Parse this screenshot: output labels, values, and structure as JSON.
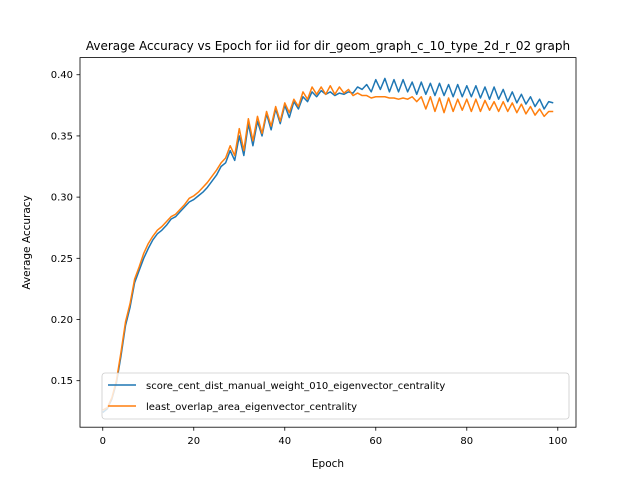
{
  "chart_data": {
    "type": "line",
    "title": "Average Accuracy vs Epoch for iid for dir_geom_graph_c_10_type_2d_r_02 graph",
    "xlabel": "Epoch",
    "ylabel": "Average Accuracy",
    "xlim": [
      -5,
      104
    ],
    "ylim": [
      0.112,
      0.414
    ],
    "xticks": [
      0,
      20,
      40,
      60,
      80,
      100
    ],
    "yticks": [
      0.15,
      0.2,
      0.25,
      0.3,
      0.35,
      0.4
    ],
    "ytick_labels": [
      "0.15",
      "0.20",
      "0.25",
      "0.30",
      "0.35",
      "0.40"
    ],
    "grid": false,
    "legend_position": "lower-left",
    "colors": {
      "series1": "#1f77b4",
      "series2": "#ff7f0e"
    },
    "x": [
      0,
      1,
      2,
      3,
      4,
      5,
      6,
      7,
      8,
      9,
      10,
      11,
      12,
      13,
      14,
      15,
      16,
      17,
      18,
      19,
      20,
      21,
      22,
      23,
      24,
      25,
      26,
      27,
      28,
      29,
      30,
      31,
      32,
      33,
      34,
      35,
      36,
      37,
      38,
      39,
      40,
      41,
      42,
      43,
      44,
      45,
      46,
      47,
      48,
      49,
      50,
      51,
      52,
      53,
      54,
      55,
      56,
      57,
      58,
      59,
      60,
      61,
      62,
      63,
      64,
      65,
      66,
      67,
      68,
      69,
      70,
      71,
      72,
      73,
      74,
      75,
      76,
      77,
      78,
      79,
      80,
      81,
      82,
      83,
      84,
      85,
      86,
      87,
      88,
      89,
      90,
      91,
      92,
      93,
      94,
      95,
      96,
      97,
      98,
      99
    ],
    "series": [
      {
        "name": "score_cent_dist_manual_weight_010_eigenvector_centrality",
        "values": [
          0.124,
          0.127,
          0.135,
          0.148,
          0.17,
          0.195,
          0.21,
          0.23,
          0.24,
          0.25,
          0.258,
          0.265,
          0.27,
          0.273,
          0.277,
          0.282,
          0.284,
          0.288,
          0.292,
          0.296,
          0.298,
          0.301,
          0.304,
          0.308,
          0.313,
          0.318,
          0.325,
          0.328,
          0.338,
          0.33,
          0.35,
          0.334,
          0.36,
          0.342,
          0.362,
          0.35,
          0.368,
          0.355,
          0.372,
          0.36,
          0.375,
          0.365,
          0.378,
          0.372,
          0.382,
          0.378,
          0.386,
          0.382,
          0.387,
          0.384,
          0.386,
          0.383,
          0.385,
          0.384,
          0.386,
          0.385,
          0.39,
          0.388,
          0.392,
          0.386,
          0.396,
          0.388,
          0.397,
          0.386,
          0.396,
          0.386,
          0.396,
          0.386,
          0.394,
          0.384,
          0.394,
          0.384,
          0.393,
          0.383,
          0.393,
          0.383,
          0.392,
          0.382,
          0.392,
          0.382,
          0.391,
          0.382,
          0.391,
          0.381,
          0.39,
          0.38,
          0.39,
          0.38,
          0.388,
          0.378,
          0.386,
          0.377,
          0.384,
          0.376,
          0.382,
          0.374,
          0.38,
          0.372,
          0.378,
          0.377
        ]
      },
      {
        "name": "least_overlap_area_eigenvector_centrality",
        "values": [
          0.126,
          0.128,
          0.136,
          0.15,
          0.173,
          0.198,
          0.213,
          0.233,
          0.243,
          0.254,
          0.262,
          0.268,
          0.273,
          0.276,
          0.28,
          0.284,
          0.286,
          0.29,
          0.294,
          0.299,
          0.301,
          0.304,
          0.308,
          0.312,
          0.317,
          0.322,
          0.328,
          0.332,
          0.342,
          0.334,
          0.356,
          0.338,
          0.364,
          0.346,
          0.366,
          0.352,
          0.37,
          0.358,
          0.374,
          0.362,
          0.377,
          0.369,
          0.38,
          0.374,
          0.386,
          0.38,
          0.39,
          0.384,
          0.39,
          0.384,
          0.391,
          0.384,
          0.39,
          0.385,
          0.388,
          0.383,
          0.385,
          0.383,
          0.383,
          0.381,
          0.382,
          0.382,
          0.382,
          0.381,
          0.381,
          0.38,
          0.381,
          0.38,
          0.382,
          0.378,
          0.382,
          0.372,
          0.382,
          0.37,
          0.381,
          0.369,
          0.381,
          0.37,
          0.38,
          0.371,
          0.38,
          0.37,
          0.38,
          0.37,
          0.379,
          0.371,
          0.378,
          0.37,
          0.378,
          0.37,
          0.377,
          0.369,
          0.376,
          0.368,
          0.374,
          0.367,
          0.372,
          0.366,
          0.37,
          0.37
        ]
      }
    ]
  }
}
